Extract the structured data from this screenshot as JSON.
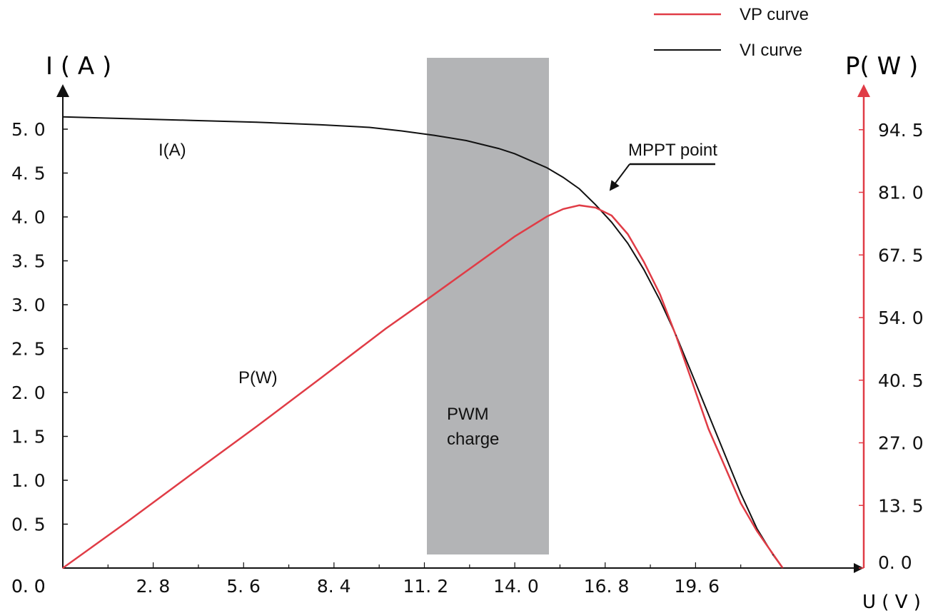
{
  "chart_data": {
    "type": "line",
    "colors": {
      "vp": "#e03c46",
      "vi": "#111111",
      "band": "#b3b4b6",
      "right_axis": "#e03c46"
    },
    "xlabel": "U ( V )",
    "ylabel_left": "I ( A )",
    "ylabel_right": "P( W )",
    "xlim": [
      0,
      22.6
    ],
    "ylim_left": [
      0,
      5.6
    ],
    "ylim_right": [
      0,
      105.84
    ],
    "x_ticks": [
      0,
      2.8,
      5.6,
      8.4,
      11.2,
      14.0,
      16.8,
      19.6
    ],
    "x_tick_labels": [
      "0. 0",
      "2. 8",
      "5. 6",
      "8. 4",
      "11. 2",
      "14. 0",
      "16. 8",
      "19. 6"
    ],
    "y_left_ticks": [
      0,
      0.5,
      1.0,
      1.5,
      2.0,
      2.5,
      3.0,
      3.5,
      4.0,
      4.5,
      5.0
    ],
    "y_left_tick_labels": [
      "0. 0",
      "0. 5",
      "1. 0",
      "1. 5",
      "2. 0",
      "2. 5",
      "3. 0",
      "3. 5",
      "4. 0",
      "4. 5",
      "5. 0"
    ],
    "y_right_ticks": [
      0,
      13.5,
      27.0,
      40.5,
      54.0,
      67.5,
      81.0,
      94.5
    ],
    "y_right_tick_labels": [
      "0. 0",
      "13. 5",
      "27. 0",
      "40. 5",
      "54. 0",
      "67. 5",
      "81. 0",
      "94. 5"
    ],
    "legend_position": "top-right",
    "series": [
      {
        "name": "VP curve",
        "label": "P(W)",
        "axis": "right",
        "x": [
          0,
          2.0,
          4.0,
          6.0,
          8.0,
          10.0,
          11.2,
          12.0,
          13.0,
          14.0,
          15.0,
          15.5,
          16.0,
          16.5,
          17.0,
          17.5,
          18.0,
          18.5,
          19.0,
          19.5,
          20.0,
          20.5,
          21.0,
          21.5,
          22.0,
          22.3
        ],
        "y": [
          0,
          10.0,
          20.3,
          30.5,
          41.0,
          51.6,
          57.5,
          61.5,
          66.5,
          71.5,
          75.8,
          77.4,
          78.2,
          77.7,
          76.0,
          72.0,
          66.0,
          59.0,
          50.0,
          40.0,
          30.0,
          22.0,
          14.0,
          8.0,
          3.0,
          0
        ]
      },
      {
        "name": "VI curve",
        "label": "I(A)",
        "axis": "left",
        "x": [
          0,
          2.0,
          4.0,
          6.0,
          8.0,
          9.5,
          10.5,
          11.5,
          12.5,
          13.5,
          14.0,
          14.5,
          15.0,
          15.5,
          16.0,
          16.5,
          17.0,
          17.5,
          18.0,
          18.5,
          19.0,
          19.5,
          20.0,
          20.5,
          21.0,
          21.5,
          22.0,
          22.3
        ],
        "y": [
          5.14,
          5.12,
          5.1,
          5.08,
          5.05,
          5.02,
          4.98,
          4.93,
          4.87,
          4.78,
          4.72,
          4.64,
          4.56,
          4.45,
          4.32,
          4.14,
          3.94,
          3.7,
          3.4,
          3.05,
          2.65,
          2.2,
          1.75,
          1.3,
          0.85,
          0.45,
          0.15,
          0
        ]
      }
    ],
    "bands": [
      {
        "label_line1": "PWM",
        "label_line2": "charge",
        "x_start": 10.8,
        "x_end": 14.2,
        "y_start_left": 0.15,
        "y_end_left": 5.9
      }
    ],
    "annotations": [
      {
        "text": "MPPT point",
        "x": 16.0,
        "y_left": 4.3
      }
    ]
  }
}
